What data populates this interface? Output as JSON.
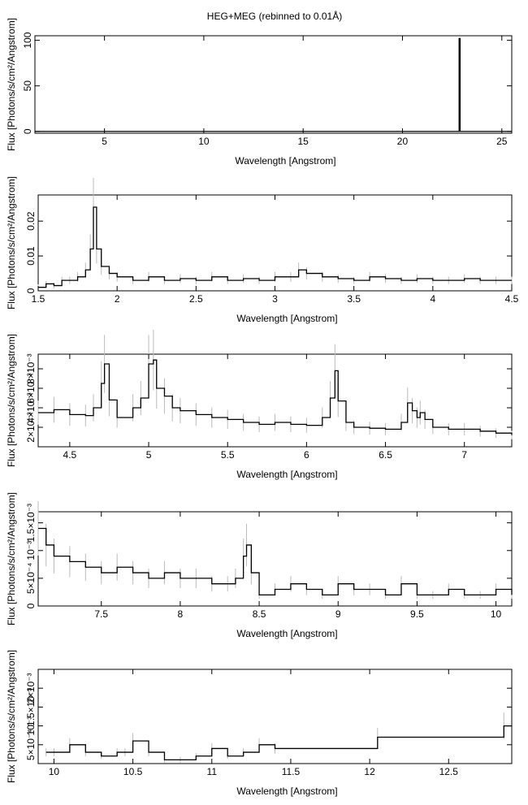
{
  "title": "HEG+MEG (rebinned to 0.01Å)",
  "chart_data": [
    {
      "type": "line",
      "xlabel": "Wavelength [Angstrom]",
      "ylabel": "Flux [Photons/s/cm²/Angstrom]",
      "xlim": [
        1.5,
        25.5
      ],
      "ylim": [
        -2,
        105
      ],
      "xticks": [
        5,
        10,
        15,
        20,
        25
      ],
      "xtick_labels": [
        "5",
        "10",
        "15",
        "20",
        "25"
      ],
      "yticks": [
        0,
        50,
        100
      ],
      "ytick_labels": [
        "0",
        "50",
        "100"
      ],
      "x": [
        1.5,
        22.8,
        22.85,
        22.9,
        25.5
      ],
      "y": [
        0,
        0,
        102,
        0,
        0
      ],
      "error_bars": false
    },
    {
      "type": "line",
      "xlabel": "Wavelength [Angstrom]",
      "ylabel": "Flux [Photons/s/cm²/Angstrom]",
      "xlim": [
        1.5,
        4.5
      ],
      "ylim": [
        0,
        0.0275
      ],
      "xticks": [
        1.5,
        2,
        2.5,
        3,
        3.5,
        4,
        4.5
      ],
      "xtick_labels": [
        "1.5",
        "2",
        "2.5",
        "3",
        "3.5",
        "4",
        "4.5"
      ],
      "yticks": [
        0,
        0.01,
        0.02
      ],
      "ytick_labels": [
        "0",
        "0.01",
        "0.02"
      ],
      "x": [
        1.5,
        1.55,
        1.6,
        1.65,
        1.7,
        1.75,
        1.8,
        1.83,
        1.85,
        1.87,
        1.9,
        1.95,
        2.0,
        2.1,
        2.2,
        2.3,
        2.4,
        2.5,
        2.6,
        2.7,
        2.8,
        2.9,
        3.0,
        3.1,
        3.15,
        3.2,
        3.3,
        3.4,
        3.5,
        3.6,
        3.7,
        3.8,
        3.9,
        4.0,
        4.1,
        4.2,
        4.3,
        4.4,
        4.5
      ],
      "y": [
        0.001,
        0.002,
        0.0015,
        0.003,
        0.003,
        0.004,
        0.006,
        0.012,
        0.024,
        0.012,
        0.007,
        0.005,
        0.004,
        0.003,
        0.004,
        0.003,
        0.0035,
        0.003,
        0.004,
        0.003,
        0.0035,
        0.003,
        0.004,
        0.004,
        0.006,
        0.005,
        0.004,
        0.0035,
        0.003,
        0.004,
        0.0035,
        0.003,
        0.0035,
        0.003,
        0.003,
        0.0035,
        0.003,
        0.003,
        0.003
      ],
      "error_bars": true
    },
    {
      "type": "line",
      "xlabel": "Wavelength [Angstrom]",
      "ylabel": "Flux [Photons/s/cm²/Angstrom]",
      "xlim": [
        4.3,
        7.3
      ],
      "ylim": [
        0,
        0.0095
      ],
      "xticks": [
        4.5,
        5,
        5.5,
        6,
        6.5,
        7
      ],
      "xtick_labels": [
        "4.5",
        "5",
        "5.5",
        "6",
        "6.5",
        "7"
      ],
      "yticks": [
        0.002,
        0.004,
        0.006,
        0.008
      ],
      "ytick_labels": [
        "2×10⁻³",
        "4×10⁻³",
        "6×10⁻³",
        "8×10⁻³"
      ],
      "x": [
        4.3,
        4.4,
        4.5,
        4.6,
        4.65,
        4.7,
        4.72,
        4.75,
        4.8,
        4.9,
        4.95,
        5.0,
        5.03,
        5.05,
        5.1,
        5.15,
        5.2,
        5.3,
        5.4,
        5.5,
        5.6,
        5.7,
        5.8,
        5.9,
        6.0,
        6.1,
        6.15,
        6.18,
        6.2,
        6.25,
        6.3,
        6.4,
        6.5,
        6.6,
        6.64,
        6.67,
        6.7,
        6.72,
        6.75,
        6.8,
        6.9,
        7.0,
        7.1,
        7.2,
        7.3
      ],
      "y": [
        0.0035,
        0.0038,
        0.0033,
        0.0032,
        0.004,
        0.0065,
        0.0085,
        0.0048,
        0.003,
        0.004,
        0.005,
        0.0085,
        0.0089,
        0.006,
        0.0052,
        0.004,
        0.0037,
        0.0033,
        0.003,
        0.0028,
        0.0025,
        0.0023,
        0.0025,
        0.0023,
        0.0022,
        0.003,
        0.005,
        0.0078,
        0.0047,
        0.0025,
        0.002,
        0.0019,
        0.0018,
        0.0025,
        0.0045,
        0.0037,
        0.003,
        0.0035,
        0.0028,
        0.002,
        0.0018,
        0.0018,
        0.0016,
        0.0014,
        0.0012
      ],
      "error_bars": true
    },
    {
      "type": "line",
      "xlabel": "Wavelength [Angstrom]",
      "ylabel": "Flux [Photons/s/cm²/Angstrom]",
      "xlim": [
        7.1,
        10.1
      ],
      "ylim": [
        0,
        0.0017
      ],
      "xticks": [
        7.5,
        8,
        8.5,
        9,
        9.5,
        10
      ],
      "xtick_labels": [
        "7.5",
        "8",
        "8.5",
        "9",
        "9.5",
        "10"
      ],
      "yticks": [
        0,
        0.0005,
        0.001,
        0.0015
      ],
      "ytick_labels": [
        "0",
        "5×10⁻⁴",
        "10⁻³",
        "1.5×10⁻³"
      ],
      "x": [
        7.1,
        7.15,
        7.2,
        7.3,
        7.4,
        7.5,
        7.6,
        7.7,
        7.8,
        7.9,
        8.0,
        8.1,
        8.2,
        8.3,
        8.35,
        8.4,
        8.42,
        8.45,
        8.5,
        8.6,
        8.7,
        8.8,
        8.9,
        9.0,
        9.1,
        9.2,
        9.3,
        9.4,
        9.5,
        9.6,
        9.7,
        9.8,
        9.9,
        10.0,
        10.1
      ],
      "y": [
        0.0014,
        0.0011,
        0.0009,
        0.0008,
        0.0007,
        0.0006,
        0.0007,
        0.0006,
        0.0005,
        0.0006,
        0.0005,
        0.0005,
        0.0004,
        0.0004,
        0.0005,
        0.0009,
        0.0011,
        0.0006,
        0.0002,
        0.0003,
        0.0004,
        0.0003,
        0.0002,
        0.0004,
        0.0003,
        0.0003,
        0.0002,
        0.0004,
        0.0002,
        0.0002,
        0.0003,
        0.0002,
        0.0002,
        0.0003,
        0.0002
      ],
      "error_bars": true
    },
    {
      "type": "line",
      "xlabel": "Wavelength [Angstrom]",
      "ylabel": "Flux [Photons/s/cm²/Angstrom]",
      "xlim": [
        9.9,
        12.9
      ],
      "ylim": [
        0,
        0.0025
      ],
      "xticks": [
        10,
        10.5,
        11,
        11.5,
        12,
        12.5
      ],
      "xtick_labels": [
        "10",
        "10.5",
        "11",
        "11.5",
        "12",
        "12.5"
      ],
      "yticks": [
        0.0005,
        0.001,
        0.0015,
        0.002
      ],
      "ytick_labels": [
        "5×10⁻⁴",
        "10⁻³",
        "1.5×10⁻³",
        "2×10⁻³"
      ],
      "x": [
        9.95,
        10.0,
        10.1,
        10.2,
        10.3,
        10.4,
        10.45,
        10.5,
        10.6,
        10.7,
        10.8,
        10.9,
        11.0,
        11.1,
        11.2,
        11.3,
        11.4,
        12.05,
        12.85
      ],
      "y": [
        0.0003,
        0.0003,
        0.0005,
        0.0003,
        0.0002,
        0.0003,
        0.0003,
        0.0006,
        0.0003,
        0.0001,
        0.0001,
        0.0002,
        0.0004,
        0.0002,
        0.0003,
        0.0005,
        0.0004,
        0.0007,
        0.001
      ],
      "error_bars": true
    }
  ]
}
